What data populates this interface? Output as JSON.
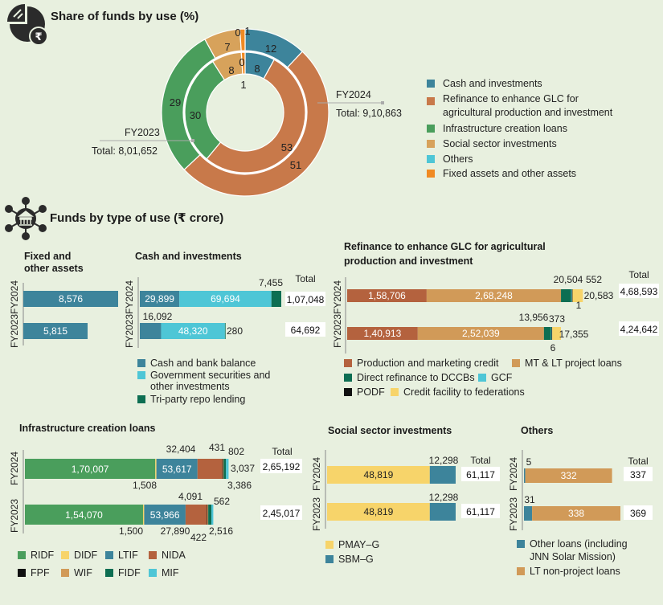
{
  "colors": {
    "teal": "#3d849b",
    "orange": "#c8794a",
    "green": "#4a9e5c",
    "tan": "#d7a25b",
    "cyan": "#4ec6d6",
    "bright_orange": "#f08a23",
    "light_tan": "#d19a58",
    "yellow": "#f7d46a",
    "dark_green": "#0d6e52",
    "black": "#111111",
    "brown": "#b4623e",
    "bg": "#e8f0df"
  },
  "icons": [
    "pie-chart-rupee-icon",
    "network-bank-icon"
  ],
  "donut": {
    "title": "Share of funds by use (%)",
    "outer": {
      "name": "FY2024",
      "total_label": "Total: 9,10,863",
      "values": [
        12,
        51,
        29,
        7,
        0,
        1
      ],
      "labels": [
        "12",
        "51",
        "29",
        "7",
        "0",
        "1"
      ]
    },
    "inner": {
      "name": "FY2023",
      "total_label": "Total: 8,01,652",
      "values": [
        8,
        53,
        30,
        8,
        0,
        1
      ],
      "labels": [
        "8",
        "53",
        "30",
        "8",
        "0",
        "1"
      ]
    },
    "legend": [
      "Cash and investments",
      "Refinance to enhance GLC for",
      "agricultural production and investment",
      "Infrastructure creation loans",
      "Social sector investments",
      "Others",
      "Fixed assets and other assets"
    ]
  },
  "section_title": "Funds by type of use (₹ crore)",
  "common": {
    "total": "Total",
    "fy2024": "FY2024",
    "fy2023": "FY2023"
  },
  "chart_data": [
    {
      "type": "bar",
      "title": "Share of funds by use (%) - donut",
      "categories": [
        "Cash and investments",
        "Refinance to enhance GLC",
        "Infrastructure creation loans",
        "Social sector investments",
        "Others",
        "Fixed assets and other assets"
      ],
      "series": [
        {
          "name": "FY2024",
          "values": [
            12,
            51,
            29,
            7,
            0,
            1
          ]
        },
        {
          "name": "FY2023",
          "values": [
            8,
            53,
            30,
            8,
            0,
            1
          ]
        }
      ]
    },
    {
      "type": "bar",
      "title": "Fixed and other assets",
      "categories": [
        "FY2024",
        "FY2023"
      ],
      "values": [
        8576,
        5815
      ],
      "labels": [
        "8,576",
        "5,815"
      ]
    },
    {
      "type": "bar",
      "title": "Cash and investments",
      "categories": [
        "FY2024",
        "FY2023"
      ],
      "series": [
        {
          "name": "Cash and bank balance",
          "values": [
            29899,
            16092
          ],
          "labels": [
            "29,899",
            "16,092"
          ]
        },
        {
          "name": "Government securities and other investments",
          "values": [
            69694,
            48320
          ],
          "labels": [
            "69,694",
            "48,320"
          ]
        },
        {
          "name": "Tri-party repo lending",
          "values": [
            7455,
            280
          ],
          "labels": [
            "7,455",
            "280"
          ]
        }
      ],
      "totals": [
        "1,07,048",
        "64,692"
      ]
    },
    {
      "type": "bar",
      "title": "Refinance to enhance GLC for agricultural production and investment",
      "categories": [
        "FY2024",
        "FY2023"
      ],
      "series": [
        {
          "name": "Production and marketing credit",
          "values": [
            158706,
            140913
          ],
          "labels": [
            "1,58,706",
            "1,40,913"
          ]
        },
        {
          "name": "MT & LT project loans",
          "values": [
            268248,
            252039
          ],
          "labels": [
            "2,68,248",
            "2,52,039"
          ]
        },
        {
          "name": "Direct refinance to DCCBs",
          "values": [
            20504,
            13956
          ],
          "labels": [
            "20,504",
            "13,956"
          ]
        },
        {
          "name": "GCF",
          "values": [
            552,
            373
          ],
          "labels": [
            "552",
            "373"
          ]
        },
        {
          "name": "PODF",
          "values": [
            1,
            6
          ],
          "labels": [
            "1",
            "6"
          ]
        },
        {
          "name": "Credit facility to federations",
          "values": [
            20583,
            17355
          ],
          "labels": [
            "20,583",
            "17,355"
          ]
        }
      ],
      "totals": [
        "4,68,593",
        "4,24,642"
      ]
    },
    {
      "type": "bar",
      "title": "Infrastructure creation loans",
      "categories": [
        "FY2024",
        "FY2023"
      ],
      "series": [
        {
          "name": "RIDF",
          "values": [
            170007,
            154070
          ],
          "labels": [
            "1,70,007",
            "1,54,070"
          ]
        },
        {
          "name": "DIDF",
          "values": [
            1508,
            1500
          ],
          "labels": [
            "1,508",
            "1,500"
          ]
        },
        {
          "name": "LTIF",
          "values": [
            53617,
            53966
          ],
          "labels": [
            "53,617",
            "53,966"
          ]
        },
        {
          "name": "NIDA",
          "values": [
            32404,
            27890
          ],
          "labels": [
            "32,404",
            "27,890"
          ]
        },
        {
          "name": "FPF",
          "values": [
            431,
            422
          ],
          "labels": [
            "431",
            "422"
          ]
        },
        {
          "name": "WIF",
          "values": [
            802,
            562
          ],
          "labels": [
            "802",
            "562"
          ]
        },
        {
          "name": "FIDF",
          "values": [
            3037,
            4091
          ],
          "labels": [
            "3,037",
            "4,091"
          ]
        },
        {
          "name": "MIF",
          "values": [
            3386,
            2516
          ],
          "labels": [
            "3,386",
            "2,516"
          ]
        }
      ],
      "totals": [
        "2,65,192",
        "2,45,017"
      ]
    },
    {
      "type": "bar",
      "title": "Social sector investments",
      "categories": [
        "FY2024",
        "FY2023"
      ],
      "series": [
        {
          "name": "PMAY–G",
          "values": [
            48819,
            48819
          ],
          "labels": [
            "48,819",
            "48,819"
          ]
        },
        {
          "name": "SBM–G",
          "values": [
            12298,
            12298
          ],
          "labels": [
            "12,298",
            "12,298"
          ]
        }
      ],
      "totals": [
        "61,117",
        "61,117"
      ]
    },
    {
      "type": "bar",
      "title": "Others",
      "categories": [
        "FY2024",
        "FY2023"
      ],
      "series": [
        {
          "name": "Other loans (including JNN Solar Mission)",
          "values": [
            5,
            31
          ],
          "labels": [
            "5",
            "31"
          ]
        },
        {
          "name": "LT non-project loans",
          "values": [
            332,
            338
          ],
          "labels": [
            "332",
            "338"
          ]
        }
      ],
      "totals": [
        "337",
        "369"
      ]
    }
  ],
  "panels": {
    "fixed": {
      "title1": "Fixed and",
      "title2": "other assets"
    },
    "cash": {
      "title": "Cash and investments",
      "legend": [
        "Cash and bank balance",
        "Government securities and",
        "other investments",
        "Tri-party repo lending"
      ]
    },
    "refin": {
      "title1": "Refinance to enhance GLC for agricultural",
      "title2": "production and investment",
      "legend": [
        "Production and marketing credit",
        "MT & LT project loans",
        "Direct refinance to DCCBs",
        "GCF",
        "PODF",
        "Credit facility to federations"
      ]
    },
    "infra": {
      "title": "Infrastructure creation loans",
      "legend": [
        "RIDF",
        "DIDF",
        "LTIF",
        "NIDA",
        "FPF",
        "WIF",
        "FIDF",
        "MIF"
      ]
    },
    "social": {
      "title": "Social sector investments",
      "legend": [
        "PMAY–G",
        "SBM–G"
      ]
    },
    "others": {
      "title": "Others",
      "legend": [
        "Other loans (including",
        "JNN Solar Mission)",
        "LT non-project loans"
      ]
    }
  }
}
